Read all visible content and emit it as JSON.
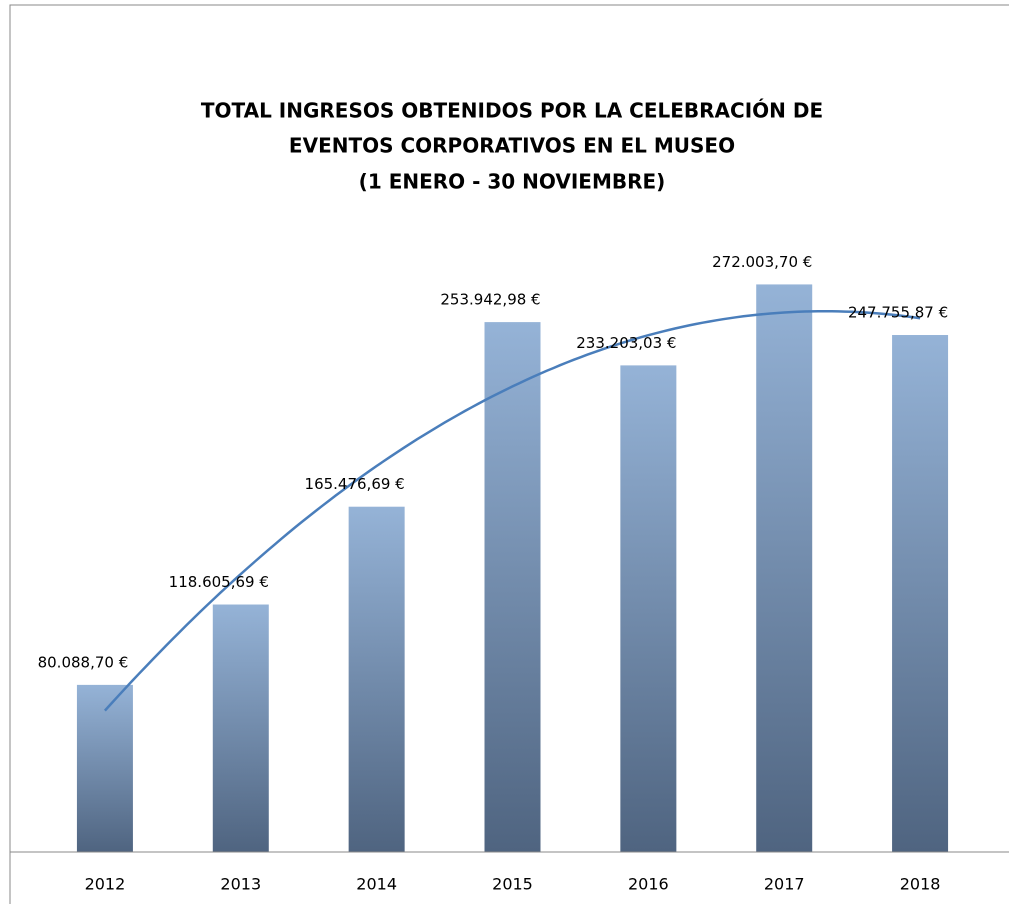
{
  "chart_data": {
    "type": "bar",
    "title": [
      "TOTAL INGRESOS OBTENIDOS POR LA CELEBRACIÓN DE",
      "EVENTOS CORPORATIVOS EN EL MUSEO",
      "(1 ENERO - 30 NOVIEMBRE)"
    ],
    "categories": [
      "2012",
      "2013",
      "2014",
      "2015",
      "2016",
      "2017",
      "2018"
    ],
    "values": [
      80088.7,
      118605.69,
      165476.69,
      253942.98,
      233203.03,
      272003.7,
      247755.87
    ],
    "value_labels": [
      "80.088,70 €",
      "118.605,69 €",
      "165.476,69 €",
      "253.942,98 €",
      "233.203,03 €",
      "272.003,70 €",
      "247.755,87 €"
    ],
    "gradient": [
      "#95b3d7",
      "#4f6480"
    ],
    "ylim": [
      0,
      300000
    ],
    "trendline": {
      "type": "polynomial",
      "order": 2,
      "color": "#4a7ebb"
    }
  }
}
